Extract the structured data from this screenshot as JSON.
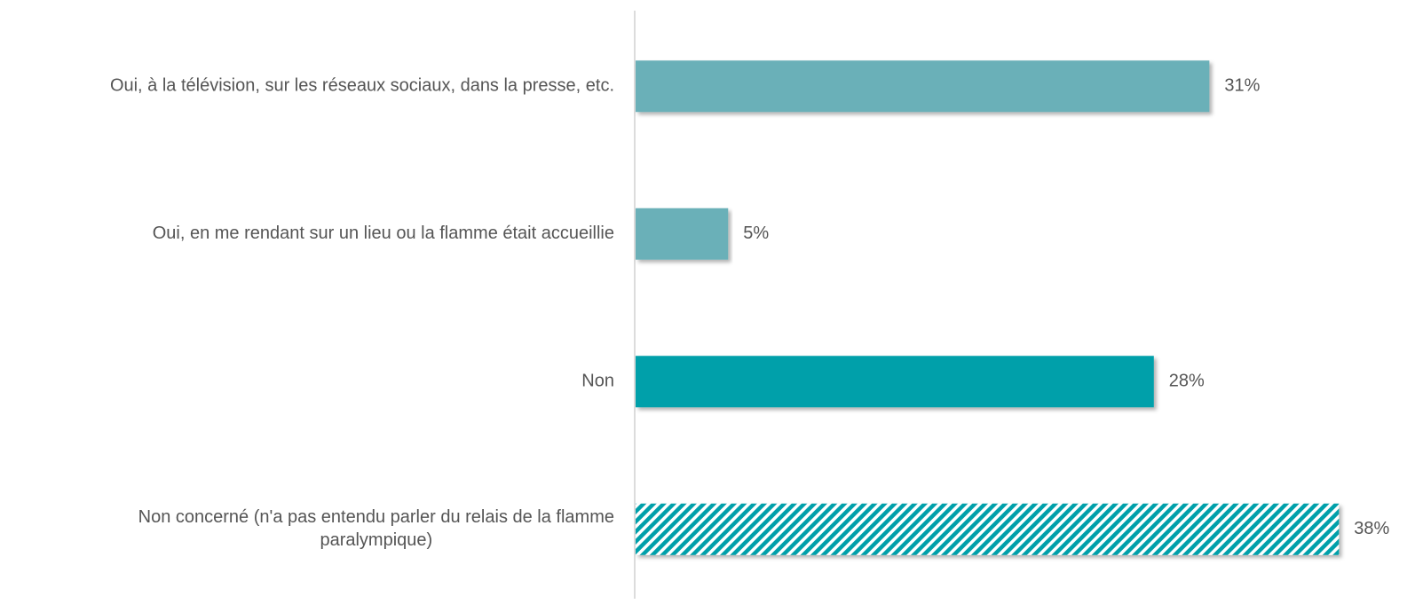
{
  "chart_data": {
    "type": "hbar",
    "categories": [
      "Oui, à la télévision, sur les réseaux sociaux, dans la presse, etc.",
      "Oui, en me rendant sur un lieu ou la flamme était accueillie",
      "Non",
      "Non concerné (n'a pas entendu parler du relais de la flamme paralympique)"
    ],
    "values": [
      31,
      5,
      28,
      38
    ],
    "value_labels": [
      "31%",
      "5%",
      "28%",
      "38%"
    ],
    "colors": [
      "#6ab0b8",
      "#6ab0b8",
      "#00a0aa",
      "#00a0aa"
    ],
    "hatched": [
      false,
      false,
      false,
      true
    ]
  }
}
